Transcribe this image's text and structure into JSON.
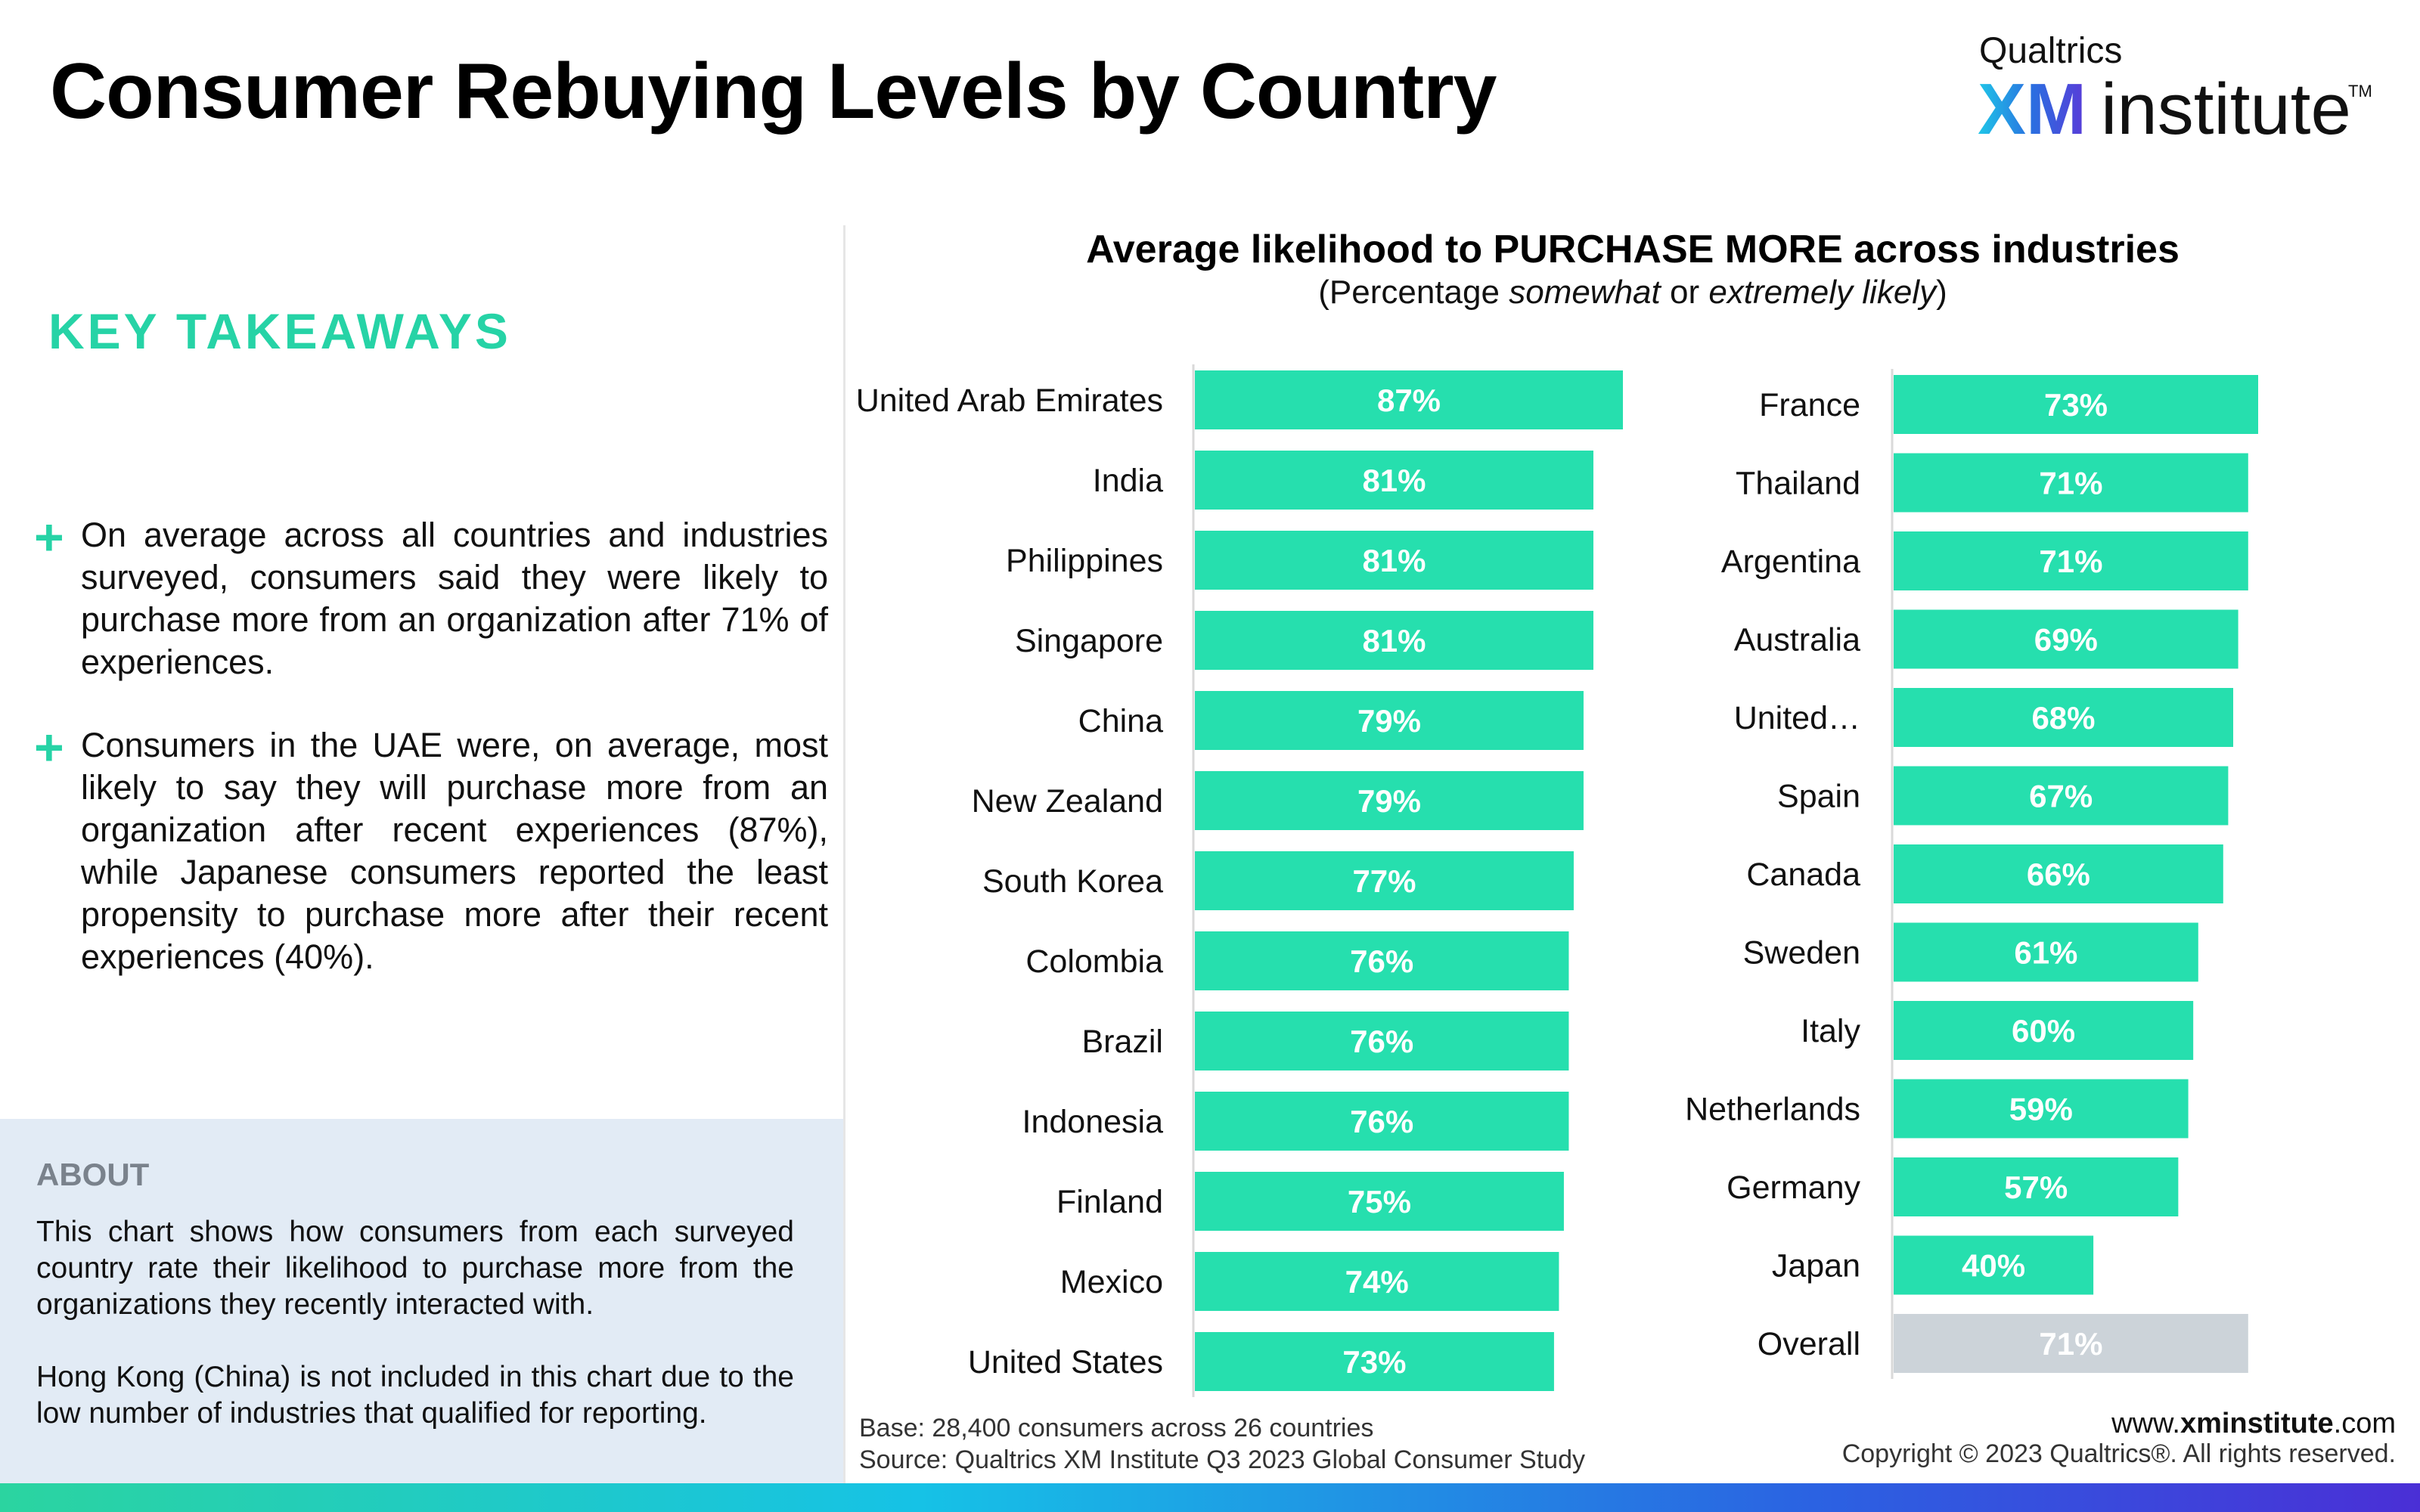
{
  "header": {
    "title": "Consumer Rebuying Levels by Country",
    "logo_top": "Qualtrics",
    "logo_xm": "XM",
    "logo_institute": "institute",
    "logo_tm": "TM"
  },
  "takeaways": {
    "heading": "KEY TAKEAWAYS",
    "items": [
      "On average across all countries and industries surveyed, consumers said they were likely to purchase more from an organization after 71% of experiences.",
      "Consumers in the UAE were, on average, most likely to say they will purchase more from an organization after recent experiences (87%), while Japanese consumers reported the least propensity to purchase more after their recent experiences (40%)."
    ]
  },
  "about": {
    "heading": "ABOUT",
    "paragraph1": "This chart shows how consumers from each surveyed country rate their likelihood to purchase more from the organizations they recently interacted with.",
    "paragraph2": "Hong Kong (China) is not included in this chart due to the low number of industries that qualified for reporting."
  },
  "chart_data": {
    "type": "bar",
    "orientation": "horizontal",
    "title": "Average likelihood to PURCHASE MORE across industries",
    "subtitle": "(Percentage somewhat or extremely likely)",
    "subtitle_parts": [
      "(Percentage ",
      "somewhat",
      " or ",
      "extremely likely",
      ")"
    ],
    "value_suffix": "%",
    "xlim": [
      0,
      100
    ],
    "bar_color": "#26dfae",
    "overall_color": "#ccd3d9",
    "panels": [
      {
        "categories": [
          "United Arab Emirates",
          "India",
          "Philippines",
          "Singapore",
          "China",
          "New Zealand",
          "South Korea",
          "Colombia",
          "Brazil",
          "Indonesia",
          "Finland",
          "Mexico",
          "United States"
        ],
        "values": [
          87,
          81,
          81,
          81,
          79,
          79,
          77,
          76,
          76,
          76,
          75,
          74,
          73
        ]
      },
      {
        "categories": [
          "France",
          "Thailand",
          "Argentina",
          "Australia",
          "United…",
          "Spain",
          "Canada",
          "Sweden",
          "Italy",
          "Netherlands",
          "Germany",
          "Japan",
          "Overall"
        ],
        "values": [
          73,
          71,
          71,
          69,
          68,
          67,
          66,
          61,
          60,
          59,
          57,
          40,
          71
        ]
      }
    ]
  },
  "footer": {
    "base": "Base: 28,400 consumers across 26 countries",
    "source": "Source: Qualtrics XM Institute Q3 2023 Global Consumer Study",
    "www_prefix": "www.",
    "www_bold": "xminstitute",
    "www_suffix": ".com",
    "copyright": "Copyright © 2023 Qualtrics®. All rights reserved."
  }
}
